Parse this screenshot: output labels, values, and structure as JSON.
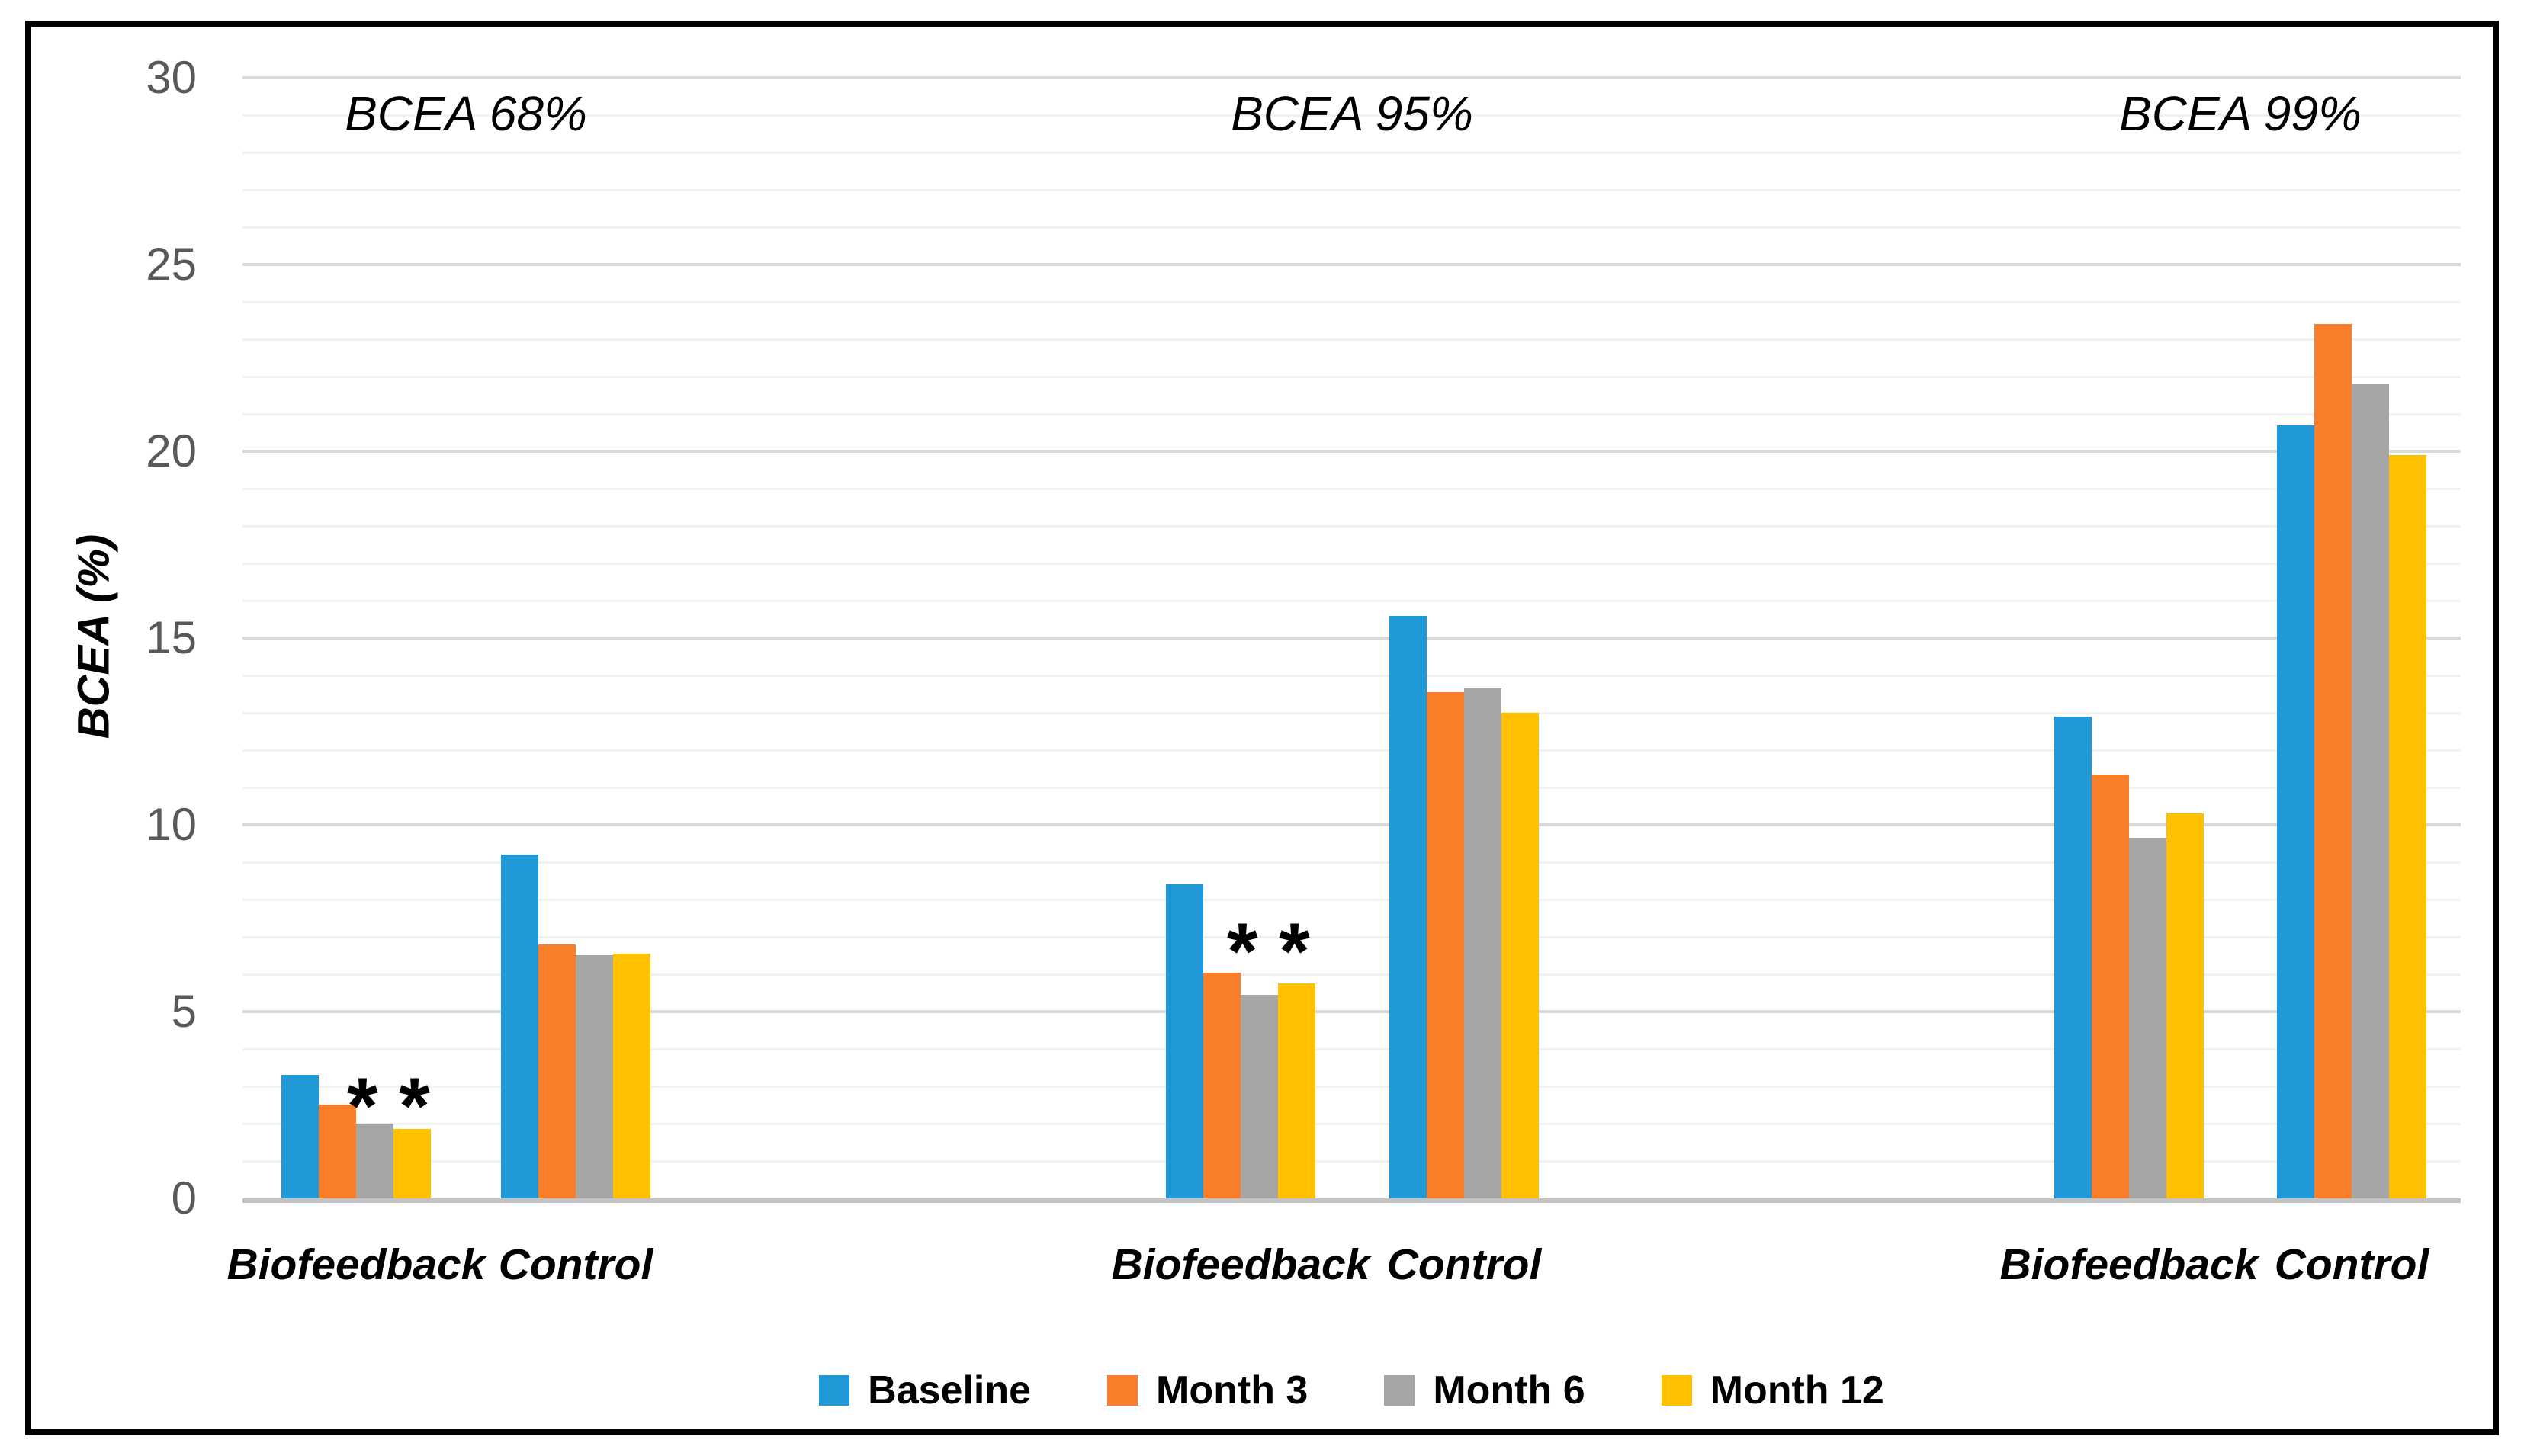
{
  "chart_data": {
    "type": "bar",
    "title": "",
    "ylabel": "BCEA (%)",
    "xlabel": "",
    "ylim": [
      0,
      30
    ],
    "yticks": [
      0,
      5,
      10,
      15,
      20,
      25,
      30
    ],
    "minor_grid_step": 1,
    "major_grid_step": 5,
    "grid": true,
    "legend_position": "bottom",
    "panel_titles": [
      "BCEA 68%",
      "BCEA 95%",
      "BCEA 99%"
    ],
    "categories": [
      "Biofeedback",
      "Control",
      "Biofeedback",
      "Control",
      "Biofeedback",
      "Control"
    ],
    "series": [
      {
        "name": "Baseline",
        "color": "#2099D8",
        "values": [
          3.3,
          9.2,
          8.4,
          15.6,
          12.9,
          20.7
        ]
      },
      {
        "name": "Month 3",
        "color": "#FA7D29",
        "values": [
          2.5,
          6.8,
          6.05,
          13.55,
          11.35,
          23.4
        ]
      },
      {
        "name": "Month 6",
        "color": "#A6A6A6",
        "values": [
          2.0,
          6.5,
          5.45,
          13.65,
          9.65,
          21.8
        ]
      },
      {
        "name": "Month 12",
        "color": "#FFC000",
        "values": [
          1.85,
          6.55,
          5.75,
          13.0,
          10.3,
          19.9
        ]
      }
    ],
    "annotations": [
      {
        "text": "**",
        "panel": "BCEA 68%",
        "over_category": "Biofeedback"
      },
      {
        "text": "**",
        "panel": "BCEA 95%",
        "over_category": "Biofeedback"
      }
    ]
  },
  "palette": {
    "figure_border": "#000000",
    "axis_line": "#C3C3C3",
    "major_grid": "#DADADA",
    "minor_grid": "#F1F1F1",
    "tick_label": "#595959",
    "text": "#000000",
    "background": "#FFFFFF"
  }
}
